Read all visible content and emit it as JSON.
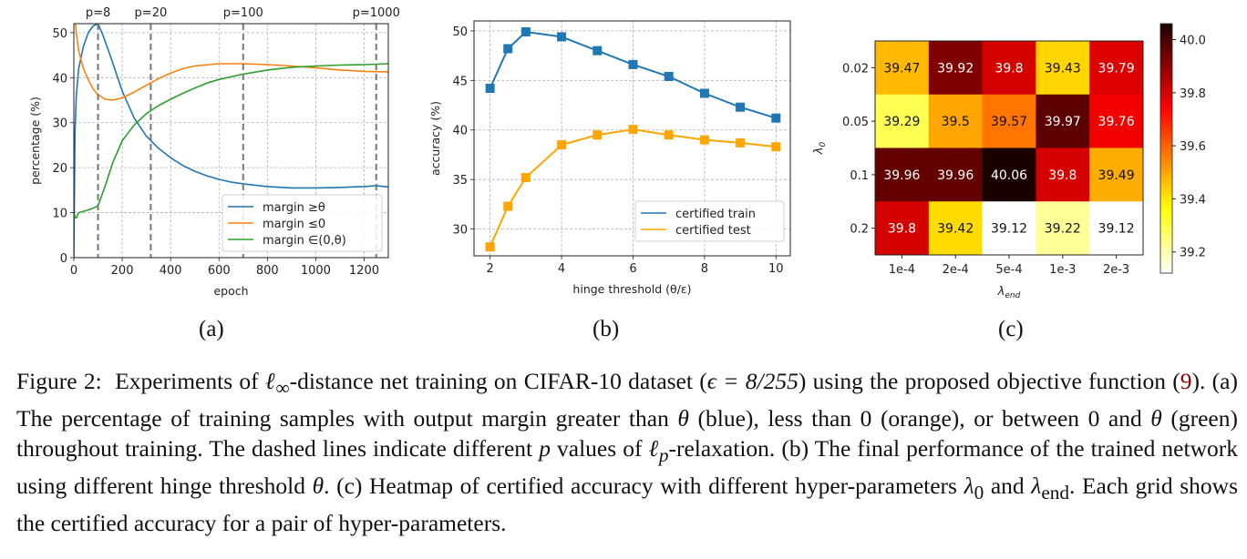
{
  "chart_data": [
    {
      "id": "a",
      "type": "line",
      "xlabel": "epoch",
      "ylabel": "percentage (%)",
      "xlim": [
        0,
        1300
      ],
      "ylim": [
        0,
        52
      ],
      "xticks": [
        0,
        200,
        400,
        600,
        800,
        1000,
        1200
      ],
      "yticks": [
        0,
        10,
        20,
        30,
        40,
        50
      ],
      "grid": true,
      "legend_position": "lower-right",
      "vlines": [
        {
          "x": 100,
          "label": "p=8"
        },
        {
          "x": 318,
          "label": "p=20"
        },
        {
          "x": 700,
          "label": "p=100"
        },
        {
          "x": 1250,
          "label": "p=1000"
        }
      ],
      "series": [
        {
          "name": "margin ≥θ",
          "color": "#1f77b4",
          "x": [
            0,
            5,
            10,
            20,
            40,
            60,
            80,
            100,
            120,
            150,
            200,
            250,
            300,
            350,
            400,
            450,
            500,
            550,
            600,
            650,
            700,
            800,
            900,
            1000,
            1100,
            1200,
            1250,
            1300
          ],
          "y": [
            0,
            28,
            36,
            42,
            47,
            50,
            51.5,
            52,
            49.5,
            45,
            37,
            31,
            27,
            24.3,
            22.2,
            20.5,
            19.2,
            18.2,
            17.4,
            16.8,
            16.4,
            15.8,
            15.5,
            15.5,
            15.6,
            15.8,
            16,
            15.7
          ]
        },
        {
          "name": "margin ≤0",
          "color": "#ff7f0e",
          "x": [
            5,
            10,
            20,
            40,
            60,
            80,
            100,
            130,
            160,
            200,
            250,
            300,
            350,
            400,
            450,
            500,
            600,
            700,
            800,
            900,
            1000,
            1100,
            1200,
            1300
          ],
          "y": [
            53,
            50,
            46,
            42,
            39.5,
            37.5,
            36.2,
            35.2,
            35,
            35.5,
            36.8,
            38.3,
            39.8,
            41,
            42,
            42.6,
            43.1,
            43.1,
            42.9,
            42.6,
            42.2,
            41.7,
            41.4,
            41.3
          ]
        },
        {
          "name": "margin ∈(0,θ)",
          "color": "#2ca02c",
          "x": [
            0,
            5,
            10,
            15,
            20,
            40,
            60,
            80,
            100,
            130,
            160,
            200,
            250,
            300,
            350,
            400,
            450,
            500,
            550,
            600,
            700,
            800,
            900,
            1000,
            1100,
            1200,
            1250,
            1300
          ],
          "y": [
            10,
            9,
            8.8,
            9.5,
            10,
            10.3,
            10.6,
            11,
            11.5,
            16,
            21,
            26,
            29.5,
            32,
            33.8,
            35.2,
            36.5,
            37.7,
            38.8,
            39.6,
            40.8,
            41.7,
            42.3,
            42.6,
            42.8,
            42.9,
            43,
            43.1
          ]
        }
      ]
    },
    {
      "id": "b",
      "type": "line",
      "xlabel": "hinge threshold (θ/ε)",
      "ylabel": "accuracy (%)",
      "xlim": [
        1.55,
        10.4
      ],
      "ylim": [
        27.3,
        51
      ],
      "xticks": [
        2,
        4,
        6,
        8,
        10
      ],
      "yticks": [
        30,
        35,
        40,
        45,
        50
      ],
      "grid": true,
      "legend_position": "lower-right",
      "x": [
        2,
        2.5,
        3,
        4,
        5,
        6,
        7,
        8,
        9,
        10
      ],
      "series": [
        {
          "name": "certified train",
          "color": "#1f77b4",
          "marker": "square",
          "values": [
            44.2,
            48.2,
            49.9,
            49.4,
            48.0,
            46.6,
            45.4,
            43.7,
            42.3,
            41.2
          ]
        },
        {
          "name": "certified test",
          "color": "#ffa500",
          "marker": "square",
          "values": [
            28.2,
            32.3,
            35.2,
            38.5,
            39.5,
            40.06,
            39.5,
            39.0,
            38.7,
            38.3
          ]
        }
      ]
    },
    {
      "id": "c",
      "type": "heatmap",
      "xlabel": "λ_end",
      "ylabel": "λ_0",
      "colormap": "hot_r",
      "vmin": 39.12,
      "vmax": 40.06,
      "colorbar_ticks": [
        39.2,
        39.4,
        39.6,
        39.8,
        40.0
      ],
      "x_categories": [
        "1e-4",
        "2e-4",
        "5e-4",
        "1e-3",
        "2e-3"
      ],
      "y_categories": [
        "0.02",
        "0.05",
        "0.1",
        "0.2"
      ],
      "values": [
        [
          39.47,
          39.92,
          39.8,
          39.43,
          39.79
        ],
        [
          39.29,
          39.5,
          39.57,
          39.97,
          39.76
        ],
        [
          39.96,
          39.96,
          40.06,
          39.8,
          39.49
        ],
        [
          39.8,
          39.42,
          39.12,
          39.22,
          39.12
        ]
      ],
      "labels": [
        [
          "39.47",
          "39.92",
          "39.8",
          "39.43",
          "39.79"
        ],
        [
          "39.29",
          "39.5",
          "39.57",
          "39.97",
          "39.76"
        ],
        [
          "39.96",
          "39.96",
          "40.06",
          "39.8",
          "39.49"
        ],
        [
          "39.8",
          "39.42",
          "39.12",
          "39.22",
          "39.12"
        ]
      ]
    }
  ],
  "subfigure_labels": [
    "(a)",
    "(b)",
    "(c)"
  ],
  "caption": {
    "figure_label": "Figure 2:",
    "l1_a": "Experiments of ",
    "l1_linf": "ℓ",
    "l1_inf_sub": "∞",
    "l1_b": "-distance net training on CIFAR-10 dataset (",
    "l1_eps": "ϵ = 8/255",
    "l1_c": ") using the proposed objective function (",
    "ref": "9",
    "l2_a": "). (a) The percentage of training samples with output margin greater than ",
    "theta": "θ",
    "l2_b": " (blue), less than 0 (orange), or between 0 and ",
    "l2_c": " (green) throughout training. The dashed lines indicate different ",
    "p": "p",
    "l3_a": " values of ",
    "lp": "ℓ",
    "lp_sub": "p",
    "l4_a": "-relaxation. (b) The final performance of the trained network using different hinge threshold ",
    "l4_b": ". (c) Heatmap of certified accuracy with different hyper-parameters ",
    "lambda": "λ",
    "sub0": "0",
    "and": " and ",
    "subend": "end",
    "l5_a": ". Each grid shows the certified accuracy for a pair of hyper-parameters."
  }
}
